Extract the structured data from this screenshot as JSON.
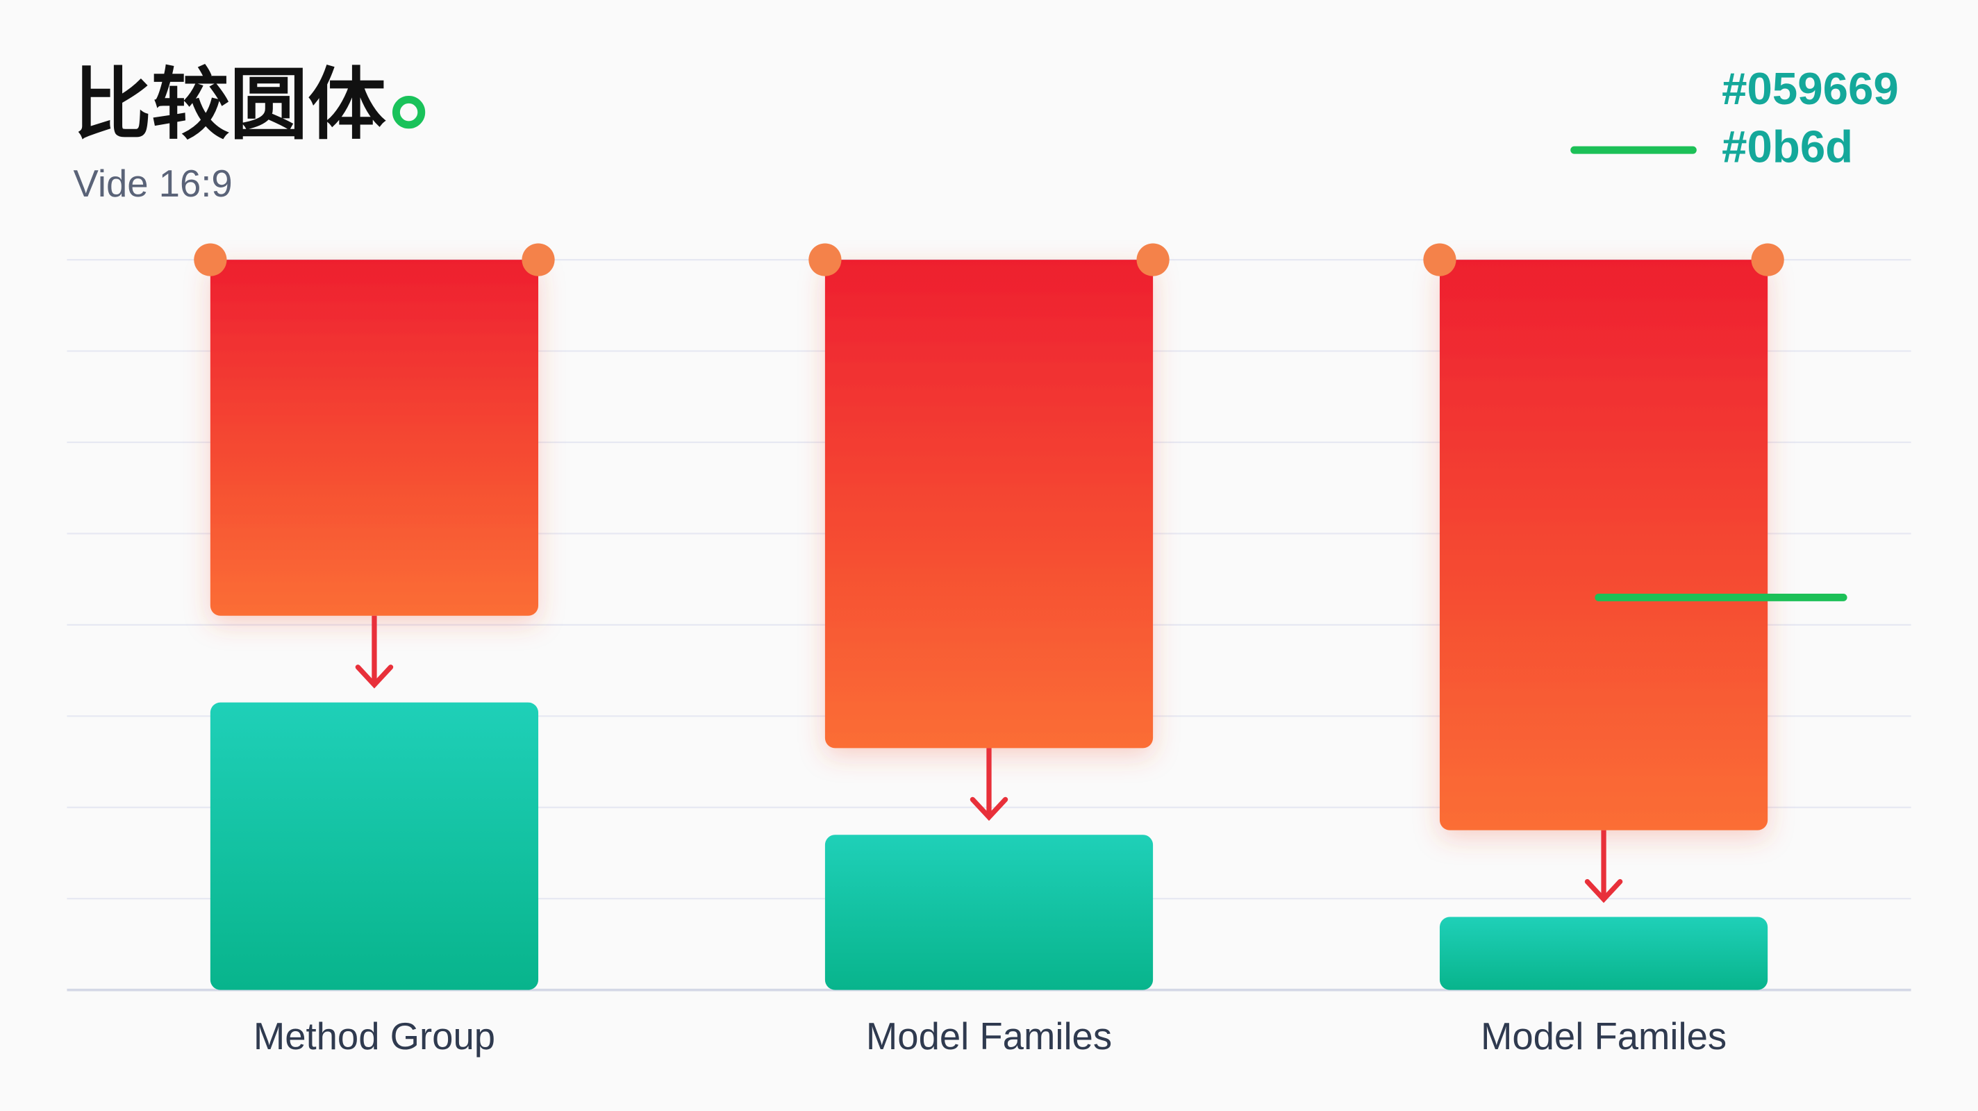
{
  "chart_data": {
    "type": "drop",
    "title": "比较圆体",
    "subtitle": "Vide 16:9",
    "categories": [
      "Method Group",
      "Model Familes",
      "Model Familes"
    ],
    "series": [
      {
        "color": "#ef2530",
        "low": [
          4.1,
          2.65,
          1.75
        ],
        "high": [
          8,
          8,
          8
        ]
      },
      {
        "color": "#14c4a2",
        "values": [
          3.15,
          1.7,
          0.8
        ]
      }
    ],
    "legend": [
      {
        "label": "#059669",
        "color": "#14a89a"
      },
      {
        "label": "#0b6d",
        "color": "#1cc057"
      }
    ],
    "reference_line": {
      "value": 4.3,
      "color": "#1cc057"
    },
    "ylim": [
      0,
      8
    ],
    "yticks": [
      0,
      1,
      2,
      3,
      4,
      5,
      6,
      7,
      8
    ],
    "grid": true
  }
}
